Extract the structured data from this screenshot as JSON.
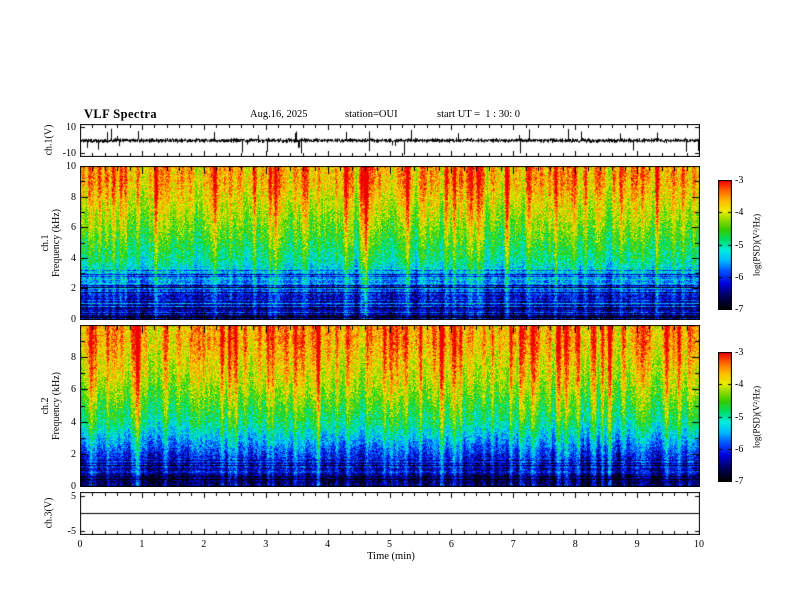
{
  "title": "VLF Spectra",
  "header": {
    "date": "Aug.16, 2025",
    "station": "station=OUI",
    "start_ut": "start UT =  1 : 30: 0"
  },
  "xaxis": {
    "label": "Time (min)",
    "range": [
      0,
      10
    ],
    "major_ticks": [
      0,
      1,
      2,
      3,
      4,
      5,
      6,
      7,
      8,
      9,
      10
    ],
    "minor_tick_interval": 0.2
  },
  "colormap": {
    "range": [
      -7,
      -3
    ],
    "stops": [
      [
        0,
        "#000000"
      ],
      [
        0.1,
        "#000055"
      ],
      [
        0.2,
        "#0000dd"
      ],
      [
        0.3,
        "#0055ff"
      ],
      [
        0.38,
        "#00bbff"
      ],
      [
        0.46,
        "#00eedd"
      ],
      [
        0.54,
        "#00dd66"
      ],
      [
        0.62,
        "#33cc00"
      ],
      [
        0.7,
        "#99dd00"
      ],
      [
        0.76,
        "#eeee00"
      ],
      [
        0.84,
        "#ffbb00"
      ],
      [
        0.92,
        "#ff6600"
      ],
      [
        1,
        "#ee0000"
      ]
    ]
  },
  "chart_data": [
    {
      "type": "line",
      "name": "ch1-voltage",
      "ylabel": "ch.1(V)",
      "ylim": [
        -10,
        10
      ],
      "yticks": [
        10,
        -10
      ],
      "line_color": "#000000",
      "description": "Broadband noise waveform centred on 0 V (~±2 V background) with frequent impulsive spikes reaching ±9 V across the full 10-minute record"
    },
    {
      "type": "heatmap",
      "name": "ch1-spectrogram",
      "ylabel_lines": [
        "ch.1",
        "Frequency (kHz)"
      ],
      "ylim": [
        0,
        10
      ],
      "yticks": [
        0,
        2,
        4,
        6,
        8,
        10
      ],
      "value_range": [
        -7,
        -3
      ],
      "freq_profile": [
        {
          "freq_khz": [
            0,
            1
          ],
          "mean_log_psd": -6.6
        },
        {
          "freq_khz": [
            1,
            3
          ],
          "mean_log_psd": -6.0
        },
        {
          "freq_khz": [
            3,
            5
          ],
          "mean_log_psd": -5.0
        },
        {
          "freq_khz": [
            5,
            8
          ],
          "mean_log_psd": -4.3
        },
        {
          "freq_khz": [
            8,
            10
          ],
          "mean_log_psd": -3.7
        }
      ],
      "structure": "dense vertical broadband impulse streaks (sferics) every few seconds; persistent horizontal banding below ~3.5 kHz; red/orange maxima above ~8 kHz",
      "colorbar": {
        "label": "log(PSD)(V²/Hz)",
        "ticks": [
          -3,
          -4,
          -5,
          -6,
          -7
        ]
      }
    },
    {
      "type": "heatmap",
      "name": "ch2-spectrogram",
      "ylabel_lines": [
        "ch.2",
        "Frequency (kHz)"
      ],
      "ylim": [
        0,
        10
      ],
      "yticks": [
        0,
        2,
        4,
        6,
        8
      ],
      "value_range": [
        -7,
        -3
      ],
      "freq_profile": [
        {
          "freq_khz": [
            0,
            1
          ],
          "mean_log_psd": -6.7
        },
        {
          "freq_khz": [
            1,
            3
          ],
          "mean_log_psd": -6.1
        },
        {
          "freq_khz": [
            3,
            5
          ],
          "mean_log_psd": -5.0
        },
        {
          "freq_khz": [
            5,
            8
          ],
          "mean_log_psd": -4.2
        },
        {
          "freq_khz": [
            8,
            10
          ],
          "mean_log_psd": -3.7
        }
      ],
      "structure": "vertical broadband impulse streaks extending down to low frequency; darker quiet background below ~2 kHz; red/orange maxima above ~8 kHz",
      "colorbar": {
        "label": "log(PSD)(V²/Hz)",
        "ticks": [
          -3,
          -4,
          -5,
          -6,
          -7
        ]
      }
    },
    {
      "type": "line",
      "name": "ch3-voltage",
      "ylabel": "ch.3(V)",
      "ylim": [
        -5,
        5
      ],
      "yticks": [
        5,
        -5
      ],
      "constant_value": 0,
      "line_color": "#000000",
      "description": "Constant flat line at 0 V for the full 10 minutes"
    }
  ]
}
